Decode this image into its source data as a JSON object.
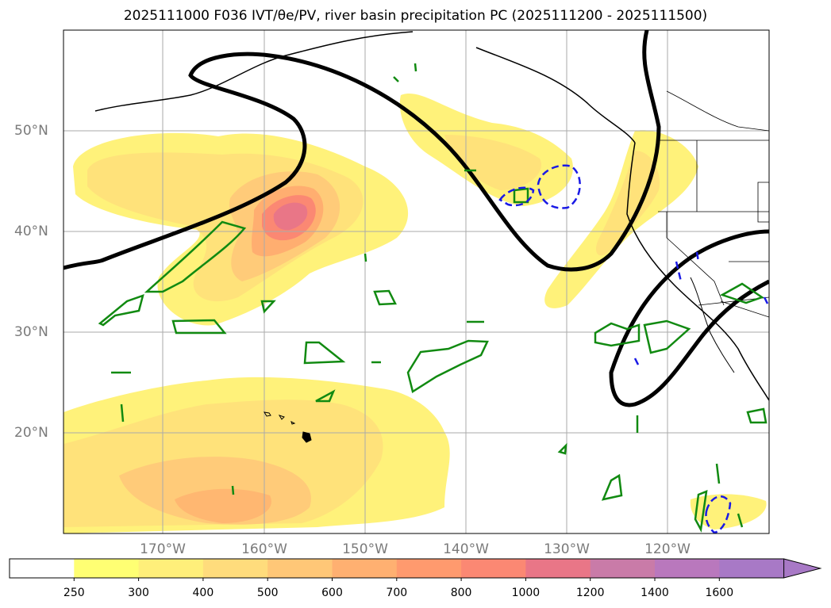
{
  "title": "2025111000 F036 IVT/θe/PV, river basin precipitation PC (2025111200 - 2025111500)",
  "map": {
    "lon_labels": [
      "170°W",
      "160°W",
      "150°W",
      "140°W",
      "130°W",
      "120°W"
    ],
    "lat_labels": [
      "50°N",
      "40°N",
      "30°N",
      "20°N"
    ],
    "lon_range": [
      -180,
      -110
    ],
    "lat_range": [
      10,
      60
    ],
    "grid": true,
    "layers": [
      "ivt-shading",
      "theta-e-contour",
      "pv-contour",
      "precip-contour",
      "coastlines",
      "state-borders"
    ]
  },
  "colorbar": {
    "tick_labels": [
      "250",
      "300",
      "400",
      "500",
      "600",
      "700",
      "800",
      "1000",
      "1200",
      "1400",
      "1600"
    ],
    "colors": [
      "#ffffff",
      "#ffff73",
      "#ffef7a",
      "#ffdc7c",
      "#ffc777",
      "#ffb071",
      "#ff9a6e",
      "#fb8873",
      "#e97687",
      "#c97ba8",
      "#b978bd",
      "#a879c6"
    ],
    "extend": "max"
  },
  "colors": {
    "theta_e_contour": "#000000",
    "precip_contour": "#118a11",
    "pv_contour": "#1a1ae6",
    "grid": "#aaaaaa"
  }
}
